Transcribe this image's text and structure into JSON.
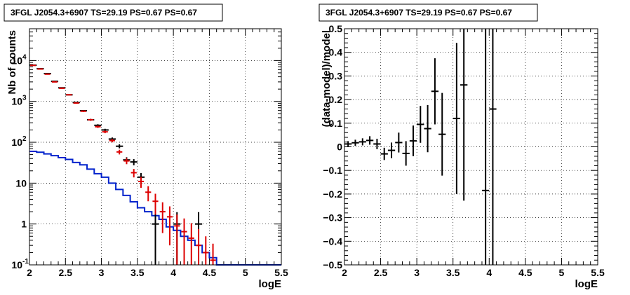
{
  "chart_data": [
    {
      "type": "line",
      "title": "3FGL J2054.3+6907 TS=29.19 PS=0.67 PS=0.67",
      "xlabel": "logE",
      "ylabel": "Nb of counts",
      "xlim": [
        2,
        5.5
      ],
      "ylim": [
        0.1,
        60000
      ],
      "ylog": true,
      "grid": true,
      "x_ticks": [
        "2",
        "2.5",
        "3",
        "3.5",
        "4",
        "4.5",
        "5",
        "5.5"
      ],
      "y_ticks": [
        {
          "value": 0.1,
          "label": "10",
          "sup": "-1"
        },
        {
          "value": 1,
          "label": "1",
          "sup": ""
        },
        {
          "value": 10,
          "label": "10",
          "sup": ""
        },
        {
          "value": 100,
          "label": "10",
          "sup": "2"
        },
        {
          "value": 1000,
          "label": "10",
          "sup": "3"
        },
        {
          "value": 10000,
          "label": "10",
          "sup": "4"
        }
      ],
      "colors": {
        "data": "#000000",
        "model": "#dd0000",
        "background": "#0022cc"
      },
      "series": [
        {
          "role": "data",
          "x": [
            2.05,
            2.15,
            2.25,
            2.35,
            2.45,
            2.55,
            2.65,
            2.75,
            2.85,
            2.95,
            3.05,
            3.15,
            3.25,
            3.35,
            3.45,
            3.55,
            3.75,
            4.05,
            4.35
          ],
          "y": [
            7700,
            6300,
            4800,
            3100,
            2150,
            1450,
            940,
            590,
            355,
            260,
            200,
            120,
            80,
            37,
            33,
            14,
            1,
            1,
            1
          ],
          "yerr": [
            90,
            80,
            70,
            56,
            46,
            38,
            31,
            24,
            19,
            16,
            14,
            11,
            9,
            6,
            5.7,
            3.7,
            0.95,
            0.95,
            0.95
          ]
        },
        {
          "role": "model",
          "x": [
            2.05,
            2.15,
            2.25,
            2.35,
            2.45,
            2.55,
            2.65,
            2.75,
            2.85,
            2.95,
            3.05,
            3.15,
            3.25,
            3.35,
            3.45,
            3.55,
            3.65,
            3.75,
            3.85,
            3.95,
            4.05,
            4.15,
            4.25,
            4.35,
            4.45,
            4.55
          ],
          "y": [
            7600,
            6200,
            4650,
            3000,
            2100,
            1450,
            910,
            575,
            355,
            240,
            180,
            110,
            58,
            35,
            18,
            11,
            6,
            3.6,
            2,
            1.5,
            0.9,
            0.65,
            0.45,
            0.3,
            0.2,
            0.13
          ],
          "yerr": [
            87,
            79,
            68,
            55,
            46,
            38,
            30,
            24,
            19,
            15.5,
            13.4,
            10.5,
            7.6,
            5.9,
            4.2,
            3.3,
            2.4,
            1.9,
            1.4,
            1.2,
            0.8,
            0.72,
            0.6,
            0.45,
            0.3,
            0.2
          ]
        },
        {
          "role": "background",
          "step_edges": [
            2.0,
            2.1,
            2.2,
            2.3,
            2.4,
            2.5,
            2.6,
            2.7,
            2.8,
            2.9,
            3.0,
            3.1,
            3.2,
            3.3,
            3.4,
            3.5,
            3.6,
            3.7,
            3.8,
            3.9,
            4.0,
            4.1,
            4.2,
            4.3,
            4.4,
            4.5,
            4.6,
            5.5
          ],
          "y": [
            60,
            57,
            52,
            47,
            42,
            38,
            32,
            28,
            22,
            17,
            14,
            10,
            7,
            5,
            3.5,
            2.5,
            2,
            1.6,
            1.3,
            0.85,
            0.7,
            0.5,
            0.4,
            0.3,
            0.2,
            0.15,
            0.1
          ]
        }
      ]
    },
    {
      "type": "scatter",
      "title": "3FGL J2054.3+6907 TS=29.19 PS=0.67 PS=0.67",
      "xlabel": "logE",
      "ylabel": "(data-model)/model",
      "xlim": [
        2,
        5.5
      ],
      "ylim": [
        -0.5,
        0.5
      ],
      "grid": true,
      "x_ticks": [
        "2",
        "2.5",
        "3",
        "3.5",
        "4",
        "4.5",
        "5",
        "5.5"
      ],
      "y_ticks": [
        "0.5",
        "0.4",
        "0.3",
        "0.2",
        "0.1",
        "0",
        "−0.1",
        "−0.2",
        "−0.3",
        "−0.4",
        "−0.5"
      ],
      "series": [
        {
          "x": [
            2.05,
            2.15,
            2.25,
            2.35,
            2.45,
            2.55,
            2.65,
            2.75,
            2.85,
            2.95,
            3.05,
            3.15,
            3.25,
            3.35,
            3.55,
            3.65,
            3.95,
            4.05
          ],
          "y": [
            0.012,
            0.017,
            0.021,
            0.027,
            0.012,
            -0.03,
            -0.015,
            0.018,
            -0.028,
            0.025,
            0.095,
            0.077,
            0.235,
            0.053,
            0.12,
            0.262,
            -0.185,
            0.16
          ],
          "yerr": [
            0.012,
            0.013,
            0.015,
            0.018,
            0.022,
            0.026,
            0.033,
            0.042,
            0.052,
            0.065,
            0.078,
            0.1,
            0.14,
            0.175,
            0.32,
            0.49,
            2.0,
            2.0
          ]
        }
      ]
    }
  ]
}
